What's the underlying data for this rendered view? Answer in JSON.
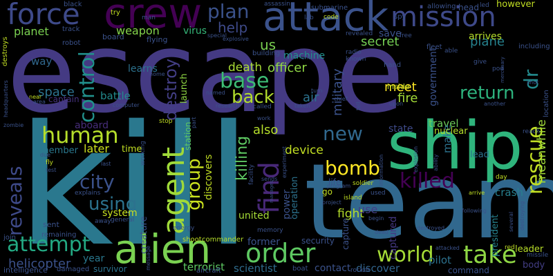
{
  "words": [
    {
      "text": "escape",
      "color": "#443a83"
    },
    {
      "text": "kill",
      "color": "#2a788e"
    },
    {
      "text": "team",
      "color": "#31688e"
    },
    {
      "text": "ship",
      "color": "#2fb47c"
    },
    {
      "text": "crew",
      "color": "#440154"
    },
    {
      "text": "attack",
      "color": "#3b528b"
    },
    {
      "text": "alien",
      "color": "#7ad151"
    },
    {
      "text": "mission",
      "color": "#3e4989"
    },
    {
      "text": "force",
      "color": "#3e4a89"
    },
    {
      "text": "order",
      "color": "#5ec962"
    },
    {
      "text": "take",
      "color": "#8fd744"
    },
    {
      "text": "agent",
      "color": "#a0da39"
    },
    {
      "text": "find",
      "color": "#482878"
    },
    {
      "text": "world",
      "color": "#a5db36"
    },
    {
      "text": "attempt",
      "color": "#23a983"
    },
    {
      "text": "base",
      "color": "#3dbc74"
    },
    {
      "text": "plan",
      "color": "#3b528b"
    },
    {
      "text": "human",
      "color": "#b5de2b"
    },
    {
      "text": "bomb",
      "color": "#fde725"
    },
    {
      "text": "killed",
      "color": "#440154"
    },
    {
      "text": "rescue",
      "color": "#c2df23"
    },
    {
      "text": "control",
      "color": "#21918c"
    },
    {
      "text": "back",
      "color": "#b2dd2d"
    },
    {
      "text": "return",
      "color": "#2db27d"
    },
    {
      "text": "city",
      "color": "#3b528b"
    },
    {
      "text": "reveals",
      "color": "#3e4a89"
    },
    {
      "text": "using",
      "color": "#2c728e"
    },
    {
      "text": "new",
      "color": "#31688e"
    },
    {
      "text": "group",
      "color": "#cae11f"
    },
    {
      "text": "destroy",
      "color": "#433e85"
    },
    {
      "text": "dr",
      "color": "#238a8d"
    },
    {
      "text": "help",
      "color": "#3e4a89"
    },
    {
      "text": "planet",
      "color": "#7ad151"
    },
    {
      "text": "weapon",
      "color": "#84d44b"
    },
    {
      "text": "officer",
      "color": "#8fd744"
    },
    {
      "text": "death",
      "color": "#a8db34"
    },
    {
      "text": "killing",
      "color": "#5ec962"
    },
    {
      "text": "also",
      "color": "#b5de2b"
    },
    {
      "text": "military",
      "color": "#3b528b"
    },
    {
      "text": "secret",
      "color": "#75d054"
    },
    {
      "text": "us",
      "color": "#7ad151"
    },
    {
      "text": "plane",
      "color": "#26828e"
    },
    {
      "text": "meet",
      "color": "#fde725"
    },
    {
      "text": "fire",
      "color": "#a2da37"
    },
    {
      "text": "air",
      "color": "#2c728e"
    },
    {
      "text": "later",
      "color": "#cde11d"
    },
    {
      "text": "space",
      "color": "#2c728e"
    },
    {
      "text": "travel",
      "color": "#6ccd5a"
    },
    {
      "text": "device",
      "color": "#c2df23"
    },
    {
      "text": "fight",
      "color": "#b5de2b"
    },
    {
      "text": "system",
      "color": "#c8e020"
    },
    {
      "text": "united",
      "color": "#a5db36"
    },
    {
      "text": "former",
      "color": "#3b528b"
    },
    {
      "text": "helicopter",
      "color": "#3b528b"
    },
    {
      "text": "scientist",
      "color": "#2f6c8e"
    },
    {
      "text": "discover",
      "color": "#32658e"
    },
    {
      "text": "pilot",
      "color": "#2c728e"
    },
    {
      "text": "body",
      "color": "#433e85"
    },
    {
      "text": "leader",
      "color": "#b8de29"
    },
    {
      "text": "president",
      "color": "#26828e"
    },
    {
      "text": "captured",
      "color": "#453882"
    },
    {
      "text": "crash",
      "color": "#277f8e"
    },
    {
      "text": "meanwhile",
      "color": "#a0da39"
    },
    {
      "text": "creature",
      "color": "#3b528b"
    },
    {
      "text": "launch",
      "color": "#8fd744"
    },
    {
      "text": "discovers",
      "color": "#c2df23"
    },
    {
      "text": "power",
      "color": "#3b528b"
    },
    {
      "text": "operation",
      "color": "#2c728e"
    },
    {
      "text": "state",
      "color": "#3e4a89"
    },
    {
      "text": "member",
      "color": "#2a788e"
    },
    {
      "text": "time",
      "color": "#c2df23"
    },
    {
      "text": "make",
      "color": "#2c728e"
    },
    {
      "text": "arrives",
      "color": "#b5de2b"
    },
    {
      "text": "save",
      "color": "#3b528b"
    },
    {
      "text": "machine",
      "color": "#21918c"
    },
    {
      "text": "virus",
      "color": "#35b779"
    },
    {
      "text": "way",
      "color": "#31688e"
    },
    {
      "text": "learns",
      "color": "#2c728e"
    },
    {
      "text": "battle",
      "color": "#238a8d"
    },
    {
      "text": "aboard",
      "color": "#472d7b"
    },
    {
      "text": "captain",
      "color": "#46327e"
    },
    {
      "text": "government",
      "color": "#3b528b"
    },
    {
      "text": "security",
      "color": "#3b528b"
    },
    {
      "text": "year",
      "color": "#2a788e"
    },
    {
      "text": "terrorist",
      "color": "#5ec962"
    },
    {
      "text": "contact",
      "color": "#3b528b"
    },
    {
      "text": "inside",
      "color": "#c2df23"
    },
    {
      "text": "nuclear",
      "color": "#b5de2b"
    },
    {
      "text": "lead",
      "color": "#2c728e"
    },
    {
      "text": "use",
      "color": "#433e85"
    },
    {
      "text": "station",
      "color": "#5ec962"
    },
    {
      "text": "go",
      "color": "#c2df23"
    },
    {
      "text": "life",
      "color": "#3b528b"
    },
    {
      "text": "capture",
      "color": "#3b528b"
    },
    {
      "text": "intelligence",
      "color": "#3b528b"
    },
    {
      "text": "survivor",
      "color": "#2c728e"
    },
    {
      "text": "damaged",
      "color": "#3b528b"
    },
    {
      "text": "command",
      "color": "#3b528b"
    },
    {
      "text": "boat",
      "color": "#3b528b"
    },
    {
      "text": "rocket",
      "color": "#3b528b"
    },
    {
      "text": "aircraft",
      "color": "#3b528b"
    },
    {
      "text": "shoot",
      "color": "#c2df23"
    },
    {
      "text": "commander",
      "color": "#b5de2b"
    },
    {
      "text": "memory",
      "color": "#3b528b"
    },
    {
      "text": "energy",
      "color": "#3b528b"
    },
    {
      "text": "remaining",
      "color": "#3b528b"
    },
    {
      "text": "join",
      "color": "#3b528b"
    },
    {
      "text": "sent",
      "color": "#3b528b"
    },
    {
      "text": "explains",
      "color": "#3b528b"
    },
    {
      "text": "away",
      "color": "#3b528b"
    },
    {
      "text": "general",
      "color": "#3b528b"
    },
    {
      "text": "robot",
      "color": "#3b528b"
    },
    {
      "text": "board",
      "color": "#3b528b"
    },
    {
      "text": "flying",
      "color": "#3b528b"
    },
    {
      "text": "track",
      "color": "#3b528b"
    },
    {
      "text": "black",
      "color": "#3b528b"
    },
    {
      "text": "try",
      "color": "#c2df23"
    },
    {
      "text": "man",
      "color": "#3b528b"
    },
    {
      "text": "assassin",
      "color": "#3b528b"
    },
    {
      "text": "submarine",
      "color": "#3b528b"
    },
    {
      "text": "lab",
      "color": "#3b528b"
    },
    {
      "text": "code",
      "color": "#c2df23"
    },
    {
      "text": "spy",
      "color": "#3b528b"
    },
    {
      "text": "allowing",
      "color": "#3b528b"
    },
    {
      "text": "head",
      "color": "#3b528b"
    },
    {
      "text": "led",
      "color": "#3b528b"
    },
    {
      "text": "however",
      "color": "#c2df23"
    },
    {
      "text": "including",
      "color": "#3b528b"
    },
    {
      "text": "fleet",
      "color": "#3b528b"
    },
    {
      "text": "able",
      "color": "#3b528b"
    },
    {
      "text": "free",
      "color": "#3b528b"
    },
    {
      "text": "revealed",
      "color": "#3b528b"
    },
    {
      "text": "radio",
      "color": "#3b528b"
    },
    {
      "text": "known",
      "color": "#3b528b"
    },
    {
      "text": "hand",
      "color": "#3b528b"
    },
    {
      "text": "give",
      "color": "#3b528b"
    },
    {
      "text": "pod",
      "color": "#3b528b"
    },
    {
      "text": "building",
      "color": "#3b528b"
    },
    {
      "text": "one",
      "color": "#3b528b"
    },
    {
      "text": "special",
      "color": "#3b528b"
    },
    {
      "text": "explosive",
      "color": "#3b528b"
    },
    {
      "text": "home",
      "color": "#3b528b"
    },
    {
      "text": "named",
      "color": "#3b528b"
    },
    {
      "text": "research",
      "color": "#3b528b"
    },
    {
      "text": "called",
      "color": "#3b528b"
    },
    {
      "text": "taken",
      "color": "#3b528b"
    },
    {
      "text": "chief",
      "color": "#3b528b"
    },
    {
      "text": "turn",
      "color": "#3b528b"
    },
    {
      "text": "upon",
      "color": "#3b528b"
    },
    {
      "text": "another",
      "color": "#3b528b"
    },
    {
      "text": "shot",
      "color": "#3b528b"
    },
    {
      "text": "location",
      "color": "#3b528b"
    },
    {
      "text": "reach",
      "color": "#3b528b"
    },
    {
      "text": "day",
      "color": "#c2df23"
    },
    {
      "text": "area",
      "color": "#3b528b"
    },
    {
      "text": "near",
      "color": "#c2df23"
    },
    {
      "text": "computer",
      "color": "#3b528b"
    },
    {
      "text": "part",
      "color": "#3b528b"
    },
    {
      "text": "stop",
      "color": "#c2df23"
    },
    {
      "text": "working",
      "color": "#3b528b"
    },
    {
      "text": "work",
      "color": "#3b528b"
    },
    {
      "text": "sends",
      "color": "#3b528b"
    },
    {
      "text": "facility",
      "color": "#3b528b"
    },
    {
      "text": "island",
      "color": "#c2df23"
    },
    {
      "text": "soldier",
      "color": "#c2df23"
    },
    {
      "text": "program",
      "color": "#3b528b"
    },
    {
      "text": "project",
      "color": "#3b528b"
    },
    {
      "text": "experiment",
      "color": "#3b528b"
    },
    {
      "text": "information",
      "color": "#3b528b"
    },
    {
      "text": "explosion",
      "color": "#3b528b"
    },
    {
      "text": "ability",
      "color": "#3b528b"
    },
    {
      "text": "arrive",
      "color": "#c2df23"
    },
    {
      "text": "following",
      "color": "#3b528b"
    },
    {
      "text": "begin",
      "color": "#3b528b"
    },
    {
      "text": "dead",
      "color": "#3b528b"
    },
    {
      "text": "destroyed",
      "color": "#3b528b"
    },
    {
      "text": "attacked",
      "color": "#3b528b"
    },
    {
      "text": "red",
      "color": "#c2df23"
    },
    {
      "text": "missile",
      "color": "#3b528b"
    },
    {
      "text": "several",
      "color": "#3b528b"
    },
    {
      "text": "destroying",
      "color": "#3b528b"
    },
    {
      "text": "message",
      "color": "#3b528b"
    },
    {
      "text": "due",
      "color": "#3b528b"
    },
    {
      "text": "fly",
      "color": "#c2df23"
    },
    {
      "text": "test",
      "color": "#3b528b"
    },
    {
      "text": "last",
      "color": "#3b528b"
    },
    {
      "text": "zombie",
      "color": "#3b528b"
    },
    {
      "text": "headquarters",
      "color": "#3b528b"
    },
    {
      "text": "destroys",
      "color": "#c2df23"
    },
    {
      "text": "manages",
      "color": "#3b528b"
    },
    {
      "text": "tell",
      "color": "#3b528b"
    },
    {
      "text": "used",
      "color": "#3b528b"
    },
    {
      "text": "mercenary",
      "color": "#3b528b"
    }
  ]
}
